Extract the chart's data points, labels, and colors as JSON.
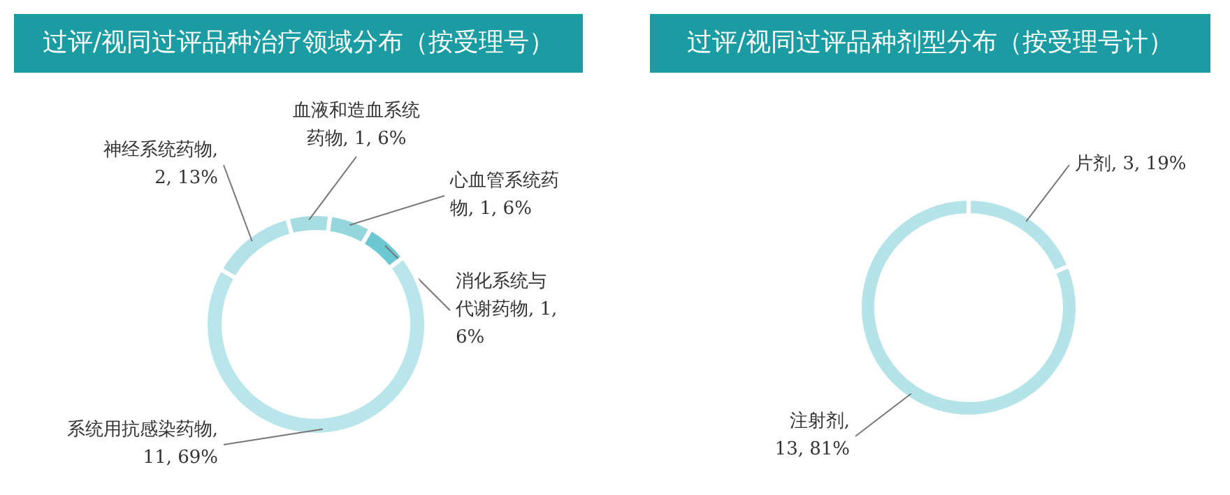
{
  "chart_data": [
    {
      "type": "donut",
      "title": "过评/视同过评品种治疗领域分布（按受理号）",
      "categories": [
        "神经系统药物",
        "血液和造血系统药物",
        "心血管系统药物",
        "消化系统与代谢药物",
        "系统用抗感染药物"
      ],
      "values": [
        2,
        1,
        1,
        1,
        11
      ],
      "colors": [
        "#b3e3e8",
        "#a6dde3",
        "#96d7de",
        "#6cc8d1",
        "#b9e6ea"
      ],
      "value_labels": [
        ", 2, 13%",
        ", 1, 6%",
        ", 1, 6%",
        ", 1, 6%",
        ", 11, 69%"
      ]
    },
    {
      "type": "donut",
      "title": "过评/视同过评品种剂型分布（按受理号计）",
      "categories": [
        "片剂",
        "注射剂"
      ],
      "values": [
        3,
        13
      ],
      "colors": [
        "#b5e4e8",
        "#b5e4e8"
      ],
      "value_labels": [
        ", 3, 19%",
        ", 13, 81%"
      ]
    }
  ]
}
